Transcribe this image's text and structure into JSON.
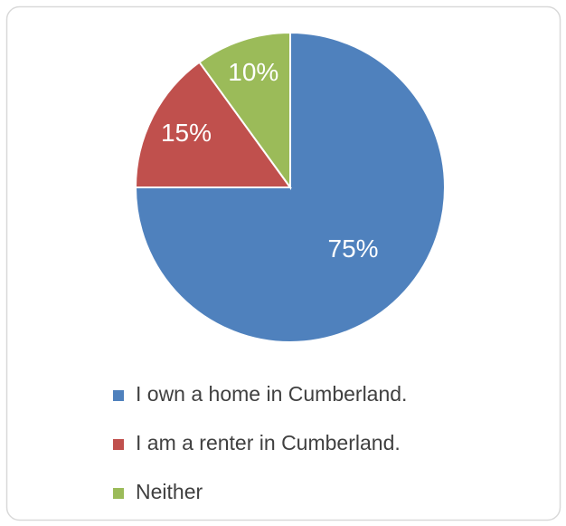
{
  "chart_data": {
    "type": "pie",
    "categories": [
      "I own a home in Cumberland.",
      "I am a renter in Cumberland.",
      "Neither"
    ],
    "values": [
      75,
      15,
      10
    ],
    "value_labels": [
      "75%",
      "15%",
      "10%"
    ],
    "colors": [
      "#4f81bd",
      "#c0504d",
      "#9bbb59"
    ],
    "legend": "bottom"
  }
}
